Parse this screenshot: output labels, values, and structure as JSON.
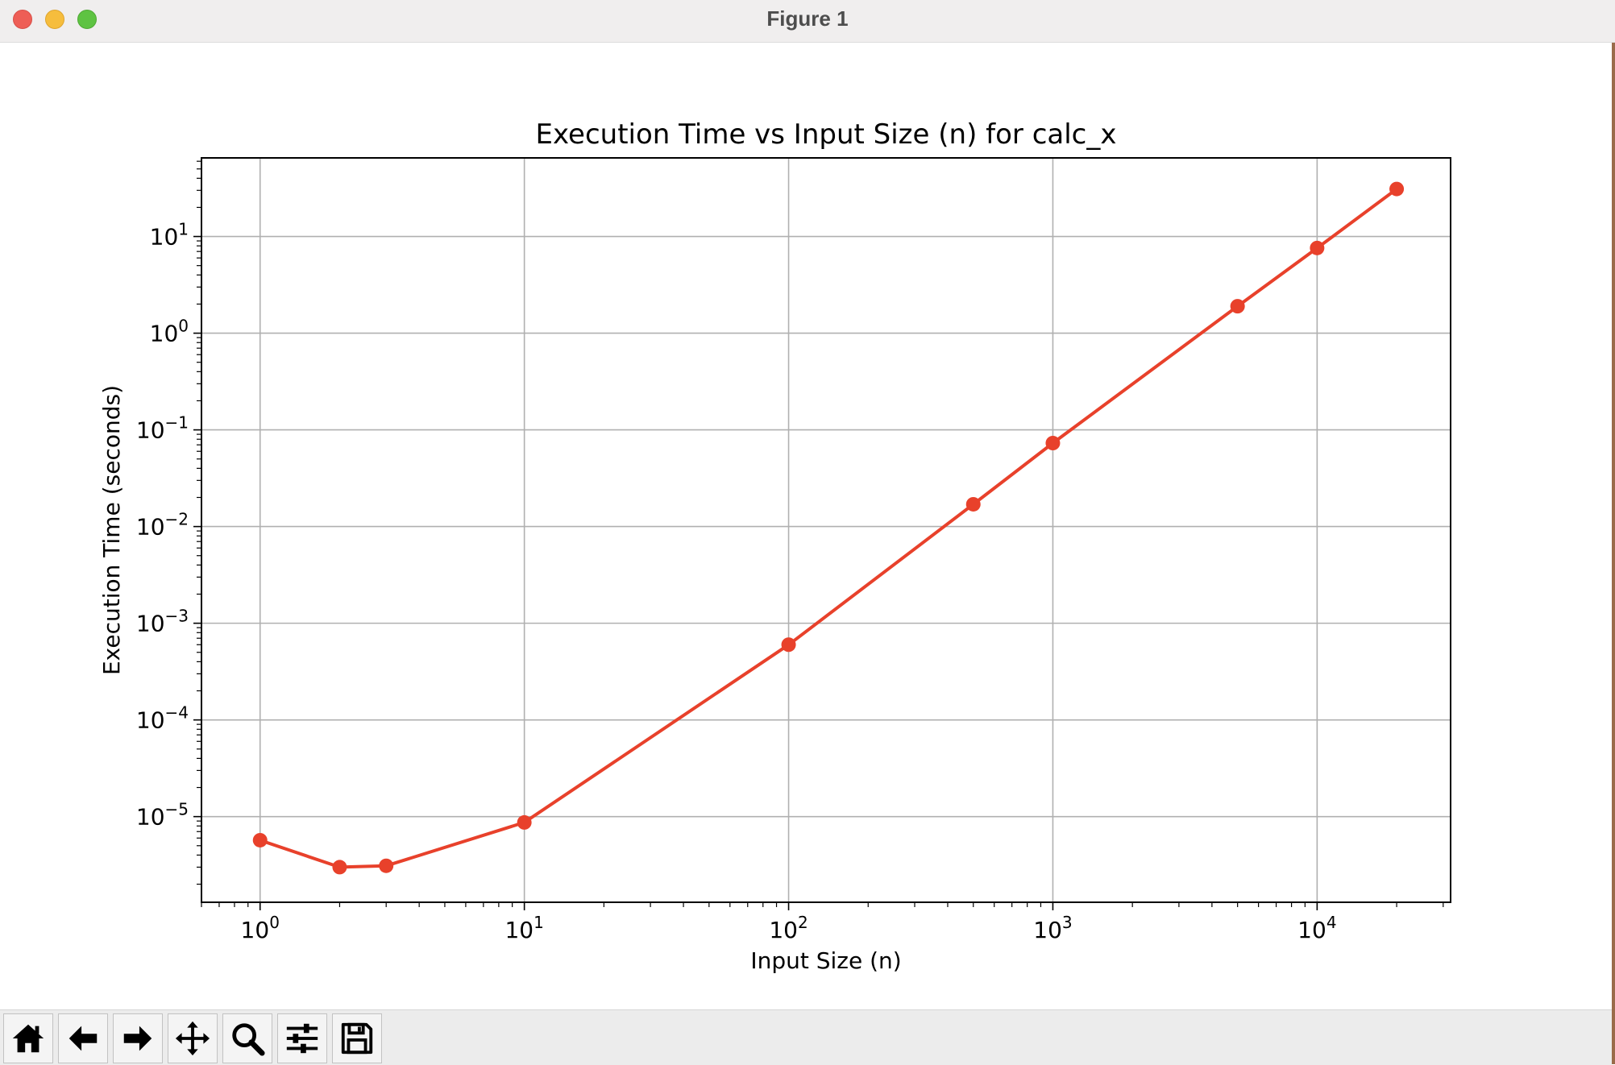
{
  "window": {
    "title": "Figure 1"
  },
  "toolbar": {
    "buttons": [
      {
        "name": "home-icon"
      },
      {
        "name": "back-icon"
      },
      {
        "name": "forward-icon"
      },
      {
        "name": "pan-icon"
      },
      {
        "name": "zoom-icon"
      },
      {
        "name": "configure-subplots-icon"
      },
      {
        "name": "save-icon"
      }
    ]
  },
  "colors": {
    "line": "#e8412b",
    "grid": "#b0b0b0"
  },
  "chart_data": {
    "type": "line",
    "title": "Execution Time vs Input Size (n) for calc_x",
    "xlabel": "Input Size (n)",
    "ylabel": "Execution Time (seconds)",
    "x_scale": "log",
    "y_scale": "log",
    "xlim": [
      0.6,
      32000
    ],
    "ylim": [
      1.3e-06,
      65
    ],
    "x_ticks": [
      1,
      10,
      100,
      1000,
      10000
    ],
    "x_tick_exponents": [
      "0",
      "1",
      "2",
      "3",
      "4"
    ],
    "y_ticks": [
      1e-05,
      0.0001,
      0.001,
      0.01,
      0.1,
      1,
      10
    ],
    "y_tick_exponents": [
      "−5",
      "−4",
      "−3",
      "−2",
      "−1",
      "0",
      "1"
    ],
    "tick_base": "10",
    "grid": true,
    "series": [
      {
        "x": [
          1,
          2,
          3,
          10,
          100,
          500,
          1000,
          5000,
          10000,
          20000
        ],
        "y": [
          5.7e-06,
          3e-06,
          3.1e-06,
          8.7e-06,
          0.0006,
          0.017,
          0.073,
          1.9,
          7.6,
          31
        ]
      }
    ]
  }
}
